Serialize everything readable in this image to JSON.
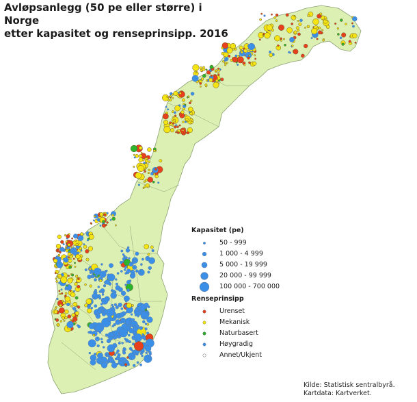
{
  "title_line1": "Avløpsanlegg (50 pe eller større) i Norge",
  "title_line2": "etter kapasitet og renseprinsipp. 2016",
  "legend": {
    "capacity_title": "Kapasitet (pe)",
    "capacity_classes": [
      {
        "label": "50 - 999"
      },
      {
        "label": "1 000 - 4 999"
      },
      {
        "label": "5 000 - 19 999"
      },
      {
        "label": "20 000 - 99 999"
      },
      {
        "label": "100 000 - 700 000"
      }
    ],
    "principle_title": "Renseprinsipp",
    "principles": [
      {
        "label": "Urenset",
        "color": "#e8401c"
      },
      {
        "label": "Mekanisk",
        "color": "#f4e414"
      },
      {
        "label": "Naturbasert",
        "color": "#2eb52e"
      },
      {
        "label": "Høygradig",
        "color": "#3c8fe6"
      },
      {
        "label": "Annet/Ukjent",
        "color": "#dcdcdc"
      }
    ]
  },
  "source_line1": "Kilde: Statistisk sentralbyrå.",
  "source_line2": "Kartdata: Kartverket.",
  "colors": {
    "land": "#ddf0b4",
    "border": "#8aa070",
    "symbol_outline": "#5a7fa8",
    "highgrade": "#3c8fe6",
    "mechanical": "#f4e414",
    "untreated": "#e8401c",
    "nature": "#2eb52e"
  }
}
